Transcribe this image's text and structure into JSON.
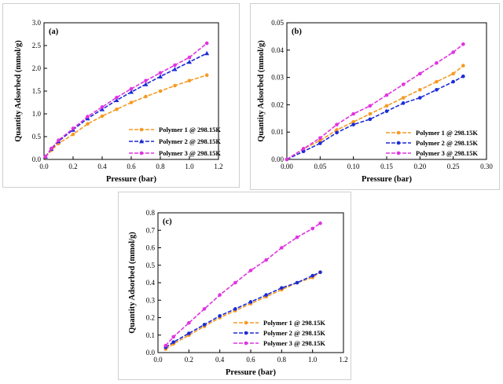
{
  "chart_data": [
    {
      "type": "line",
      "panel_label": "(a)",
      "xlabel": "Pressure (bar)",
      "ylabel": "Quantity Adsorbed (mmol/g)",
      "xlim": [
        0.0,
        1.2
      ],
      "ylim": [
        0.0,
        3.0
      ],
      "xticks": [
        "0.0",
        "0.2",
        "0.4",
        "0.6",
        "0.8",
        "1.0",
        "1.2"
      ],
      "yticks": [
        "0.0",
        "0.5",
        "1.0",
        "1.5",
        "2.0",
        "2.5",
        "3.0"
      ],
      "legend": "bottom-right",
      "series": [
        {
          "name": "Polymer 1 @ 298.15K",
          "color": "#f59a23",
          "marker": "circle",
          "x": [
            0.01,
            0.05,
            0.1,
            0.2,
            0.3,
            0.4,
            0.5,
            0.6,
            0.7,
            0.8,
            0.9,
            1.0,
            1.12
          ],
          "y": [
            0.05,
            0.2,
            0.35,
            0.55,
            0.78,
            0.95,
            1.1,
            1.25,
            1.38,
            1.5,
            1.62,
            1.73,
            1.85
          ]
        },
        {
          "name": "Polymer 2 @ 298.15K",
          "color": "#1c2bd6",
          "marker": "triangle",
          "x": [
            0.01,
            0.05,
            0.1,
            0.2,
            0.3,
            0.4,
            0.5,
            0.6,
            0.7,
            0.8,
            0.9,
            1.0,
            1.12
          ],
          "y": [
            0.06,
            0.23,
            0.4,
            0.65,
            0.9,
            1.1,
            1.3,
            1.48,
            1.65,
            1.82,
            1.98,
            2.14,
            2.33
          ]
        },
        {
          "name": "Polymer 3 @ 298.15K",
          "color": "#e033e0",
          "marker": "circle",
          "x": [
            0.01,
            0.05,
            0.1,
            0.2,
            0.3,
            0.4,
            0.5,
            0.6,
            0.7,
            0.8,
            0.9,
            1.0,
            1.12
          ],
          "y": [
            0.06,
            0.24,
            0.42,
            0.68,
            0.94,
            1.15,
            1.36,
            1.55,
            1.73,
            1.9,
            2.07,
            2.24,
            2.55
          ]
        }
      ]
    },
    {
      "type": "line",
      "panel_label": "(b)",
      "xlabel": "Pressure (bar)",
      "ylabel": "Quantity Adsorbed (mmol/g)",
      "xlim": [
        0.0,
        0.3
      ],
      "ylim": [
        -0.001,
        0.05
      ],
      "xticks": [
        "0.00",
        "0.05",
        "0.10",
        "0.15",
        "0.20",
        "0.25",
        "0.30"
      ],
      "yticks": [
        "0.00",
        "0.01",
        "0.02",
        "0.03",
        "0.04",
        "0.05"
      ],
      "legend": "bottom-right",
      "series": [
        {
          "name": "Polymer 1 @ 298.15K",
          "color": "#f59a23",
          "marker": "circle",
          "x": [
            0.0,
            0.025,
            0.05,
            0.075,
            0.1,
            0.125,
            0.15,
            0.175,
            0.2,
            0.225,
            0.25,
            0.265
          ],
          "y": [
            -0.001,
            0.003,
            0.006,
            0.01,
            0.013,
            0.016,
            0.019,
            0.022,
            0.025,
            0.028,
            0.031,
            0.034
          ]
        },
        {
          "name": "Polymer 2 @ 298.15K",
          "color": "#1c2bd6",
          "marker": "circle",
          "x": [
            0.0,
            0.025,
            0.05,
            0.075,
            0.1,
            0.125,
            0.15,
            0.175,
            0.2,
            0.225,
            0.25,
            0.265
          ],
          "y": [
            -0.001,
            0.002,
            0.005,
            0.009,
            0.012,
            0.014,
            0.017,
            0.02,
            0.022,
            0.025,
            0.028,
            0.03
          ]
        },
        {
          "name": "Polymer 3 @ 298.15K",
          "color": "#e033e0",
          "marker": "circle",
          "x": [
            0.0,
            0.025,
            0.05,
            0.075,
            0.1,
            0.125,
            0.15,
            0.175,
            0.2,
            0.225,
            0.25,
            0.265
          ],
          "y": [
            -0.001,
            0.003,
            0.007,
            0.012,
            0.016,
            0.019,
            0.023,
            0.027,
            0.031,
            0.035,
            0.039,
            0.042
          ]
        }
      ]
    },
    {
      "type": "line",
      "panel_label": "(c)",
      "xlabel": "Pressure (bar)",
      "ylabel": "Quantity Adsorbed (mmol/g)",
      "xlim": [
        0.0,
        1.2
      ],
      "ylim": [
        0.0,
        0.8
      ],
      "xticks": [
        "0.0",
        "0.2",
        "0.4",
        "0.6",
        "0.8",
        "1.0",
        "1.2"
      ],
      "yticks": [
        "0.0",
        "0.1",
        "0.2",
        "0.3",
        "0.4",
        "0.5",
        "0.6",
        "0.7",
        "0.8"
      ],
      "legend": "bottom-right",
      "series": [
        {
          "name": "Polymer 1 @ 298.15K",
          "color": "#f59a23",
          "marker": "circle",
          "x": [
            0.05,
            0.1,
            0.2,
            0.3,
            0.4,
            0.5,
            0.6,
            0.7,
            0.8,
            0.9,
            1.0,
            1.05
          ],
          "y": [
            0.02,
            0.05,
            0.1,
            0.15,
            0.2,
            0.24,
            0.28,
            0.32,
            0.36,
            0.4,
            0.43,
            0.46
          ]
        },
        {
          "name": "Polymer 2 @ 298.15K",
          "color": "#1c2bd6",
          "marker": "circle",
          "x": [
            0.05,
            0.1,
            0.2,
            0.3,
            0.4,
            0.5,
            0.6,
            0.7,
            0.8,
            0.9,
            1.0,
            1.05
          ],
          "y": [
            0.03,
            0.06,
            0.11,
            0.16,
            0.21,
            0.25,
            0.29,
            0.33,
            0.37,
            0.4,
            0.44,
            0.46
          ]
        },
        {
          "name": "Polymer 3 @ 298.15K",
          "color": "#e033e0",
          "marker": "circle",
          "x": [
            0.05,
            0.1,
            0.2,
            0.3,
            0.4,
            0.5,
            0.6,
            0.7,
            0.8,
            0.9,
            1.0,
            1.05
          ],
          "y": [
            0.04,
            0.09,
            0.17,
            0.25,
            0.33,
            0.4,
            0.47,
            0.53,
            0.6,
            0.66,
            0.71,
            0.74
          ]
        }
      ]
    }
  ]
}
